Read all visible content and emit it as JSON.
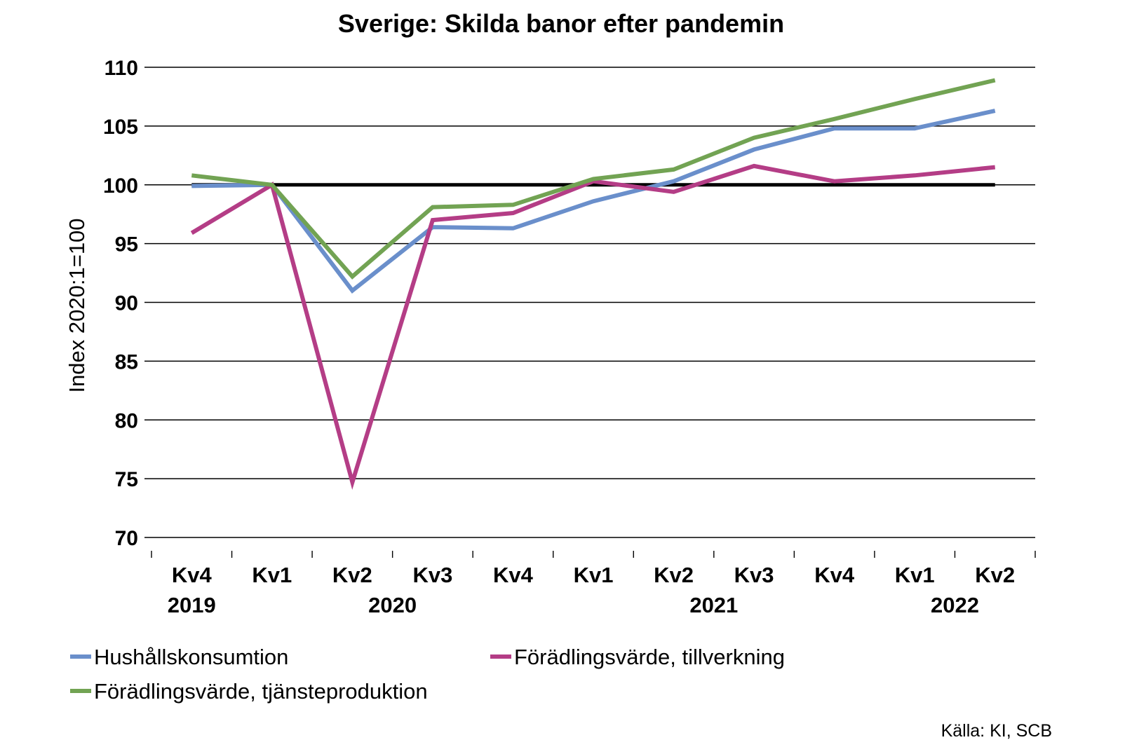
{
  "chart_data": {
    "type": "line",
    "title": "Sverige: Skilda banor efter pandemin",
    "ylabel": "Index 2020:1=100",
    "xlabel": "",
    "ylim": [
      70,
      110
    ],
    "yticks": [
      110,
      105,
      100,
      95,
      90,
      85,
      80,
      75,
      70
    ],
    "categories": [
      "Kv4",
      "Kv1",
      "Kv2",
      "Kv3",
      "Kv4",
      "Kv1",
      "Kv2",
      "Kv3",
      "Kv4",
      "Kv1",
      "Kv2"
    ],
    "years": [
      {
        "label": "2019",
        "from": 0,
        "to": 0
      },
      {
        "label": "2020",
        "from": 1,
        "to": 4
      },
      {
        "label": "2021",
        "from": 5,
        "to": 8
      },
      {
        "label": "2022",
        "from": 9,
        "to": 10
      }
    ],
    "reference_line": 100,
    "series": [
      {
        "name": "Hushållskonsumtion",
        "color": "#6a8fcb",
        "values": [
          99.9,
          100.0,
          91.0,
          96.4,
          96.3,
          98.6,
          100.3,
          103.0,
          104.8,
          104.8,
          106.3
        ]
      },
      {
        "name": "Förädlingsvärde, tillverkning",
        "color": "#b43d86",
        "values": [
          95.9,
          100.0,
          74.7,
          97.0,
          97.6,
          100.3,
          99.4,
          101.6,
          100.3,
          100.8,
          101.5
        ]
      },
      {
        "name": "Förädlingsvärde, tjänsteproduktion",
        "color": "#72a353",
        "values": [
          100.8,
          100.0,
          92.2,
          98.1,
          98.3,
          100.5,
          101.3,
          104.0,
          105.6,
          107.3,
          108.9
        ]
      }
    ],
    "grid": true,
    "legend_position": "bottom"
  },
  "source": "Källa: KI, SCB"
}
